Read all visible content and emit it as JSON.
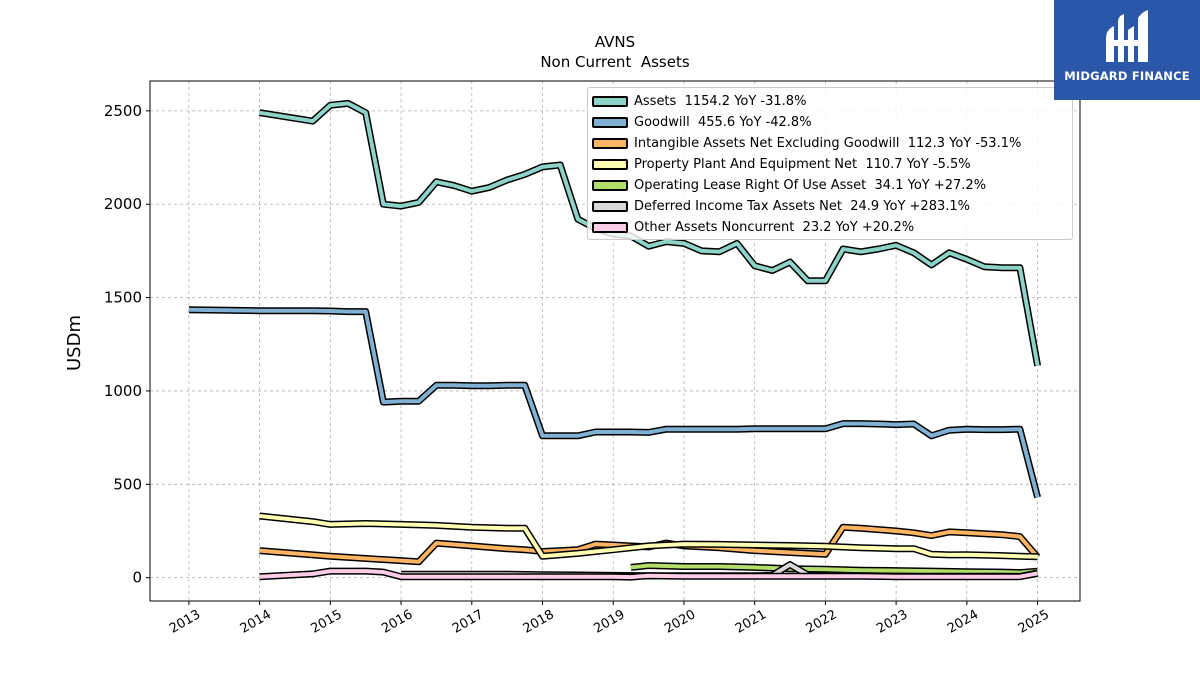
{
  "chart_data": {
    "type": "line",
    "title": "AVNS",
    "subtitle": "Non Current  Assets",
    "ylabel": "USDm",
    "xlabel": "",
    "ylim": [
      -125,
      2660
    ],
    "xlim": [
      2012.45,
      2025.6
    ],
    "y_ticks": [
      0,
      500,
      1000,
      1500,
      2000,
      2500
    ],
    "x_ticks": [
      2013,
      2014,
      2015,
      2016,
      2017,
      2018,
      2019,
      2020,
      2021,
      2022,
      2023,
      2024,
      2025
    ],
    "grid": true,
    "legend_position": "top-right",
    "series": [
      {
        "name": "Assets",
        "legend_label": "Assets  1154.2 YoY -31.8%",
        "color": "#8dd3c7",
        "x": [
          2014.0,
          2014.75,
          2015.0,
          2015.25,
          2015.5,
          2015.75,
          2016.0,
          2016.25,
          2016.5,
          2016.75,
          2017.0,
          2017.25,
          2017.5,
          2017.75,
          2018.0,
          2018.25,
          2018.5,
          2018.75,
          2019.0,
          2019.25,
          2019.5,
          2019.75,
          2020.0,
          2020.25,
          2020.5,
          2020.75,
          2021.0,
          2021.25,
          2021.5,
          2021.75,
          2022.0,
          2022.25,
          2022.5,
          2022.75,
          2023.0,
          2023.25,
          2023.5,
          2023.75,
          2024.0,
          2024.25,
          2024.5,
          2024.75,
          2025.0
        ],
        "y": [
          2490,
          2445,
          2530,
          2540,
          2490,
          2000,
          1990,
          2010,
          2120,
          2100,
          2070,
          2090,
          2130,
          2160,
          2200,
          2210,
          1920,
          1870,
          1840,
          1830,
          1775,
          1800,
          1790,
          1750,
          1745,
          1790,
          1670,
          1645,
          1690,
          1590,
          1590,
          1760,
          1745,
          1760,
          1780,
          1740,
          1675,
          1740,
          1705,
          1665,
          1660,
          1660,
          1135
        ]
      },
      {
        "name": "Goodwill",
        "legend_label": "Goodwill  455.6 YoY -42.8%",
        "color": "#80b1d3",
        "x": [
          2013.0,
          2014.0,
          2014.75,
          2015.0,
          2015.25,
          2015.5,
          2015.75,
          2016.0,
          2016.25,
          2016.5,
          2016.75,
          2017.0,
          2017.25,
          2017.5,
          2017.75,
          2018.0,
          2018.25,
          2018.5,
          2018.75,
          2019.0,
          2019.25,
          2019.5,
          2019.75,
          2020.0,
          2020.25,
          2020.5,
          2020.75,
          2021.0,
          2021.25,
          2021.5,
          2021.75,
          2022.0,
          2022.25,
          2022.5,
          2022.75,
          2023.0,
          2023.25,
          2023.5,
          2023.75,
          2024.0,
          2024.25,
          2024.5,
          2024.75,
          2025.0
        ],
        "y": [
          1435,
          1430,
          1430,
          1428,
          1425,
          1425,
          940,
          945,
          945,
          1030,
          1030,
          1028,
          1028,
          1030,
          1030,
          760,
          760,
          760,
          780,
          780,
          780,
          778,
          795,
          795,
          795,
          795,
          795,
          797,
          797,
          797,
          797,
          797,
          825,
          825,
          823,
          820,
          823,
          760,
          790,
          795,
          793,
          793,
          795,
          430
        ]
      },
      {
        "name": "Intangible Assets Net Excluding Goodwill",
        "legend_label": "Intangible Assets Net Excluding Goodwill  112.3 YoY -53.1%",
        "color": "#fdb462",
        "x": [
          2014.0,
          2015.0,
          2016.25,
          2016.5,
          2017.0,
          2017.5,
          2017.75,
          2018.0,
          2018.5,
          2018.75,
          2019.0,
          2019.5,
          2019.75,
          2020.0,
          2020.5,
          2021.0,
          2021.5,
          2022.0,
          2022.25,
          2022.5,
          2023.0,
          2023.25,
          2023.5,
          2023.75,
          2024.0,
          2024.5,
          2024.75,
          2025.0
        ],
        "y": [
          145,
          115,
          85,
          185,
          170,
          155,
          150,
          140,
          150,
          180,
          175,
          165,
          185,
          170,
          160,
          145,
          135,
          125,
          270,
          265,
          250,
          240,
          225,
          245,
          240,
          230,
          220,
          110
        ]
      },
      {
        "name": "Property Plant And Equipment Net",
        "legend_label": "Property Plant And Equipment Net  110.7 YoY -5.5%",
        "color": "#ffffb3",
        "x": [
          2014.0,
          2014.75,
          2015.0,
          2015.5,
          2016.0,
          2016.5,
          2017.0,
          2017.5,
          2017.75,
          2018.0,
          2018.5,
          2018.75,
          2019.0,
          2019.5,
          2020.0,
          2020.5,
          2021.0,
          2021.5,
          2022.0,
          2022.5,
          2023.0,
          2023.25,
          2023.5,
          2023.75,
          2024.0,
          2024.5,
          2024.75,
          2025.0
        ],
        "y": [
          330,
          300,
          285,
          290,
          285,
          280,
          270,
          265,
          265,
          115,
          130,
          140,
          150,
          170,
          180,
          178,
          175,
          172,
          168,
          160,
          155,
          155,
          125,
          122,
          123,
          118,
          115,
          112
        ]
      },
      {
        "name": "Operating Lease Right Of Use Asset",
        "legend_label": "Operating Lease Right Of Use Asset  34.1 YoY +27.2%",
        "color": "#b3de69",
        "x": [
          2019.25,
          2019.5,
          2020.0,
          2020.5,
          2021.0,
          2021.5,
          2022.0,
          2022.5,
          2023.0,
          2023.5,
          2024.0,
          2024.5,
          2024.75,
          2025.0
        ],
        "y": [
          55,
          65,
          60,
          60,
          55,
          48,
          45,
          40,
          38,
          35,
          32,
          30,
          27,
          34
        ]
      },
      {
        "name": "Deferred Income Tax Assets Net",
        "legend_label": "Deferred Income Tax Assets Net  24.9 YoY +283.1%",
        "color": "#d9d9d9",
        "x": [
          2016.0,
          2016.5,
          2017.0,
          2017.5,
          2018.0,
          2018.5,
          2019.0,
          2019.5,
          2020.0,
          2020.5,
          2021.0,
          2021.25,
          2021.5,
          2021.75,
          2022.0,
          2022.5,
          2023.0,
          2023.5,
          2024.0,
          2024.5,
          2024.75,
          2025.0
        ],
        "y": [
          18,
          18,
          18,
          18,
          16,
          14,
          12,
          10,
          10,
          10,
          10,
          12,
          70,
          15,
          10,
          10,
          8,
          8,
          8,
          8,
          7,
          25
        ]
      },
      {
        "name": "Other Assets Noncurrent",
        "legend_label": "Other Assets Noncurrent  23.2 YoY +20.2%",
        "color": "#fccde5",
        "x": [
          2014.0,
          2014.75,
          2015.0,
          2015.5,
          2015.75,
          2016.0,
          2016.5,
          2017.0,
          2017.5,
          2018.0,
          2018.5,
          2019.0,
          2019.25,
          2019.5,
          2020.0,
          2020.5,
          2021.0,
          2021.5,
          2022.0,
          2022.5,
          2023.0,
          2023.5,
          2024.0,
          2024.5,
          2024.75,
          2025.0
        ],
        "y": [
          5,
          20,
          35,
          35,
          30,
          5,
          5,
          5,
          5,
          5,
          5,
          5,
          3,
          10,
          8,
          8,
          8,
          8,
          8,
          8,
          5,
          5,
          5,
          5,
          5,
          23
        ]
      }
    ]
  },
  "logo": {
    "text": "MIDGARD FINANCE",
    "color": "#2b57a8"
  }
}
